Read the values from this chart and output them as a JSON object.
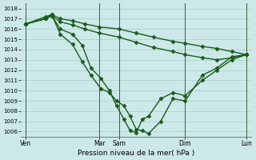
{
  "xlabel": "Pression niveau de la mer( hPa )",
  "ylim": [
    1005.5,
    1018.5
  ],
  "xlim": [
    -0.2,
    9.2
  ],
  "bg_color": "#cce8e8",
  "grid_color": "#aacccc",
  "line_color": "#1a5c1a",
  "marker": "D",
  "markersize": 2.5,
  "linewidth": 1.0,
  "ytick_vals": [
    1006,
    1007,
    1008,
    1009,
    1010,
    1011,
    1012,
    1013,
    1014,
    1015,
    1016,
    1017,
    1018
  ],
  "vline_positions": [
    0.0,
    3.0,
    3.8,
    6.5,
    9.0
  ],
  "vline_labels": [
    "Ven",
    "Mar",
    "Sam",
    "Dim",
    "Lun"
  ],
  "series": [
    {
      "x": [
        0.0,
        0.8,
        1.05,
        1.4,
        1.9,
        2.4,
        3.0,
        3.8,
        4.5,
        5.2,
        6.0,
        6.5,
        7.2,
        7.8,
        8.4,
        9.0
      ],
      "y": [
        1016.5,
        1017.2,
        1017.4,
        1017.0,
        1016.8,
        1016.5,
        1016.2,
        1016.0,
        1015.6,
        1015.2,
        1014.8,
        1014.6,
        1014.3,
        1014.1,
        1013.8,
        1013.5
      ]
    },
    {
      "x": [
        0.0,
        0.8,
        1.05,
        1.4,
        1.9,
        2.4,
        3.0,
        3.8,
        4.5,
        5.2,
        6.0,
        6.5,
        7.2,
        7.8,
        8.4,
        9.0
      ],
      "y": [
        1016.5,
        1017.0,
        1017.3,
        1016.7,
        1016.4,
        1016.0,
        1015.6,
        1015.2,
        1014.7,
        1014.2,
        1013.8,
        1013.5,
        1013.2,
        1013.0,
        1013.2,
        1013.5
      ]
    },
    {
      "x": [
        0.0,
        0.8,
        1.05,
        1.4,
        1.9,
        2.3,
        2.65,
        3.05,
        3.4,
        3.7,
        4.0,
        4.25,
        4.5,
        4.75,
        5.0,
        5.5,
        6.0,
        6.5,
        7.2,
        7.8,
        8.4,
        9.0
      ],
      "y": [
        1016.5,
        1017.0,
        1017.3,
        1016.0,
        1015.5,
        1014.4,
        1012.2,
        1011.2,
        1010.0,
        1008.5,
        1007.2,
        1006.1,
        1005.9,
        1007.2,
        1007.5,
        1009.2,
        1009.8,
        1009.5,
        1011.0,
        1012.0,
        1013.0,
        1013.5
      ]
    },
    {
      "x": [
        0.0,
        0.8,
        1.05,
        1.4,
        1.9,
        2.3,
        2.65,
        3.05,
        3.4,
        3.7,
        4.0,
        4.25,
        4.5,
        4.75,
        5.0,
        5.5,
        6.0,
        6.5,
        7.2,
        7.8,
        8.4,
        9.0
      ],
      "y": [
        1016.5,
        1017.0,
        1017.4,
        1015.5,
        1014.5,
        1012.8,
        1011.5,
        1010.2,
        1009.8,
        1009.0,
        1008.5,
        1007.5,
        1006.2,
        1006.1,
        1005.8,
        1007.0,
        1009.2,
        1009.0,
        1011.5,
        1012.2,
        1013.3,
        1013.5
      ]
    }
  ]
}
